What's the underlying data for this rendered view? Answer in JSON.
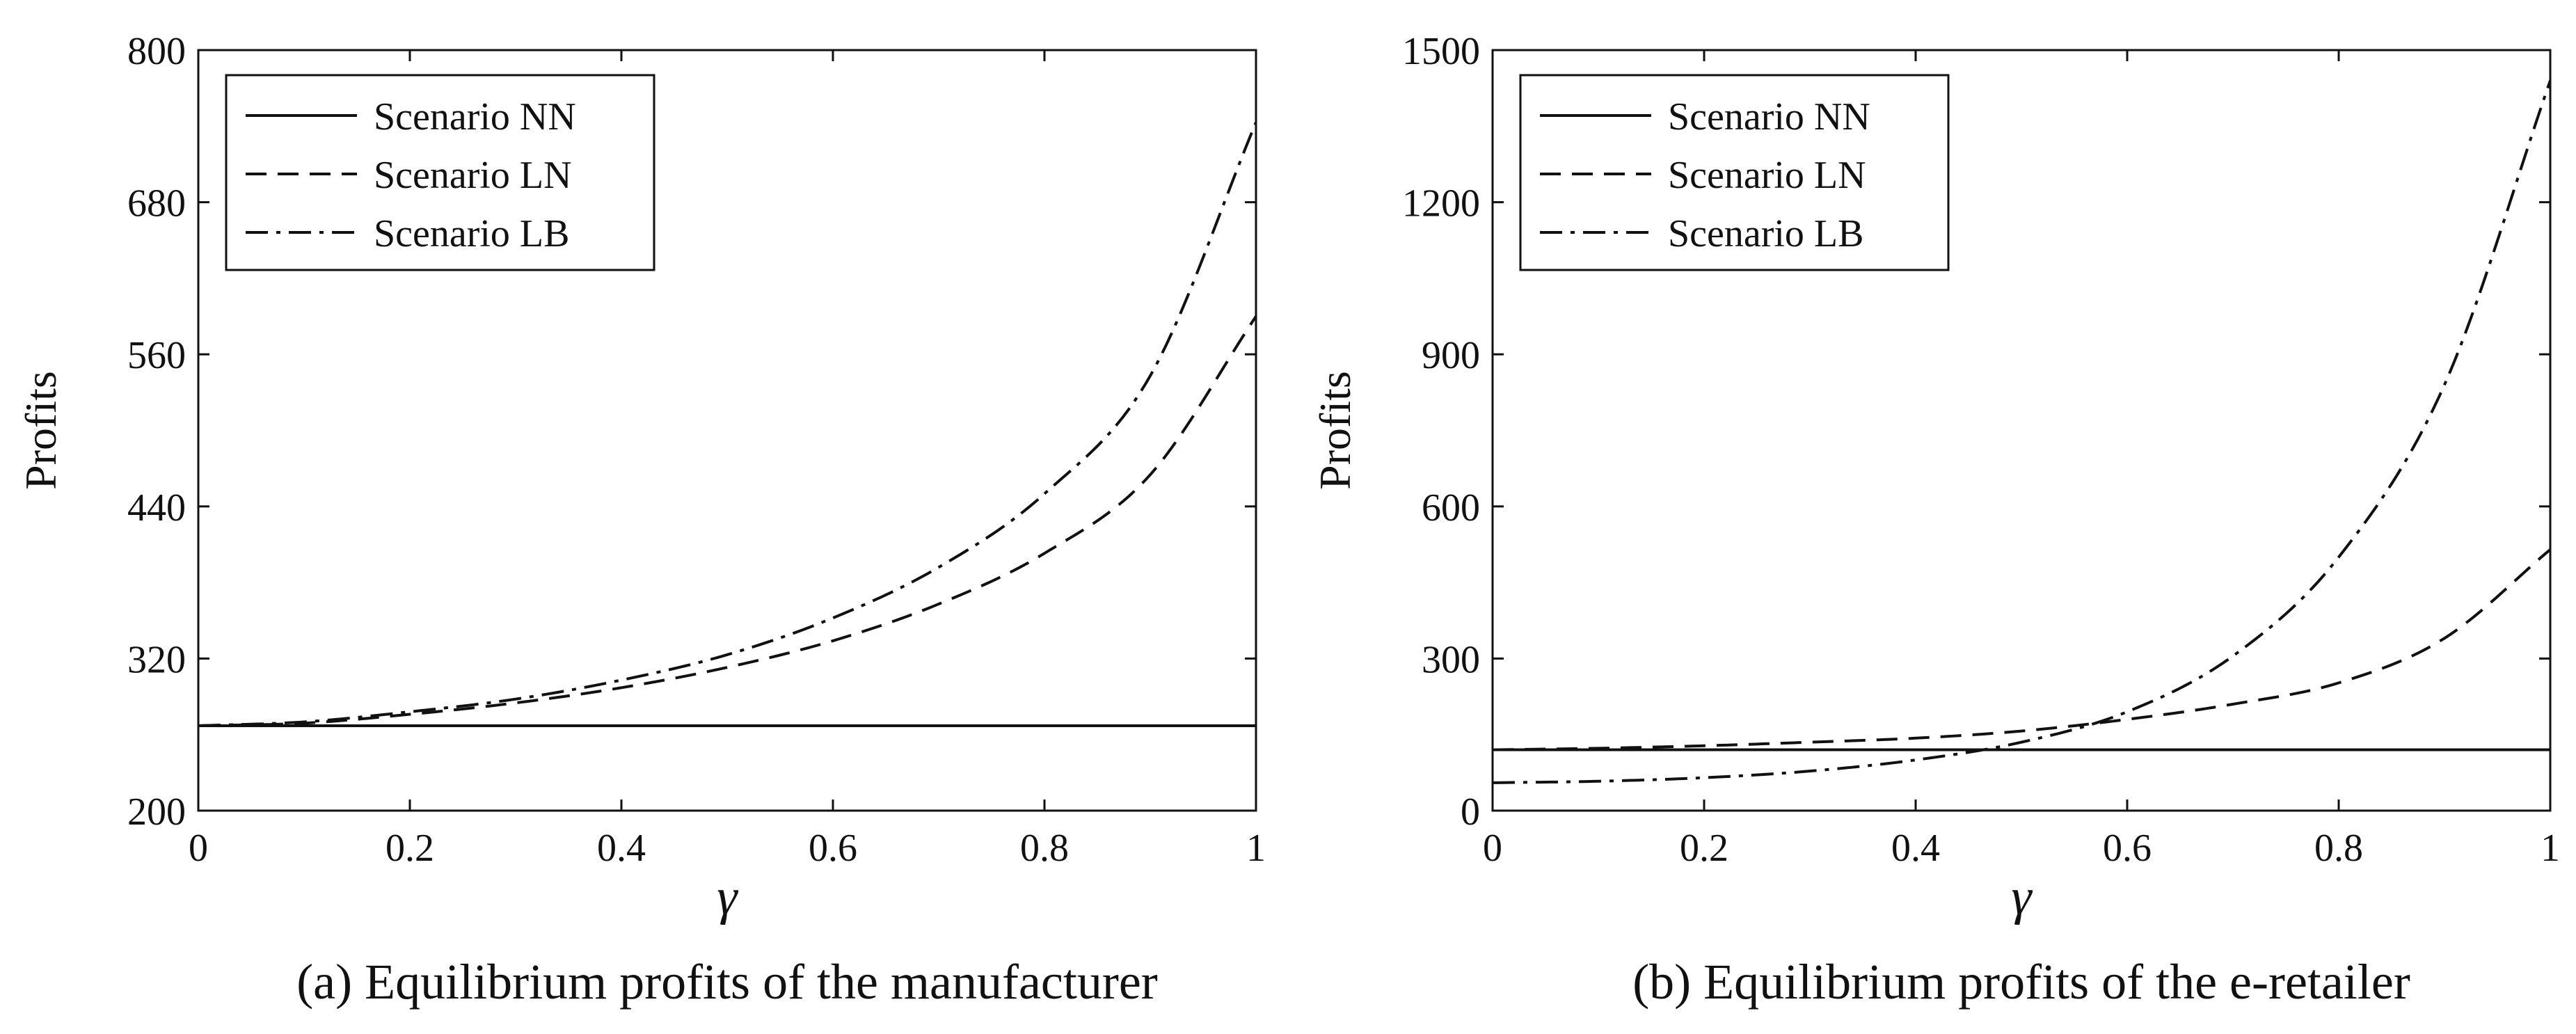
{
  "chart_data": [
    {
      "type": "line",
      "caption": "(a) Equilibrium profits of the manufacturer",
      "xlabel": "γ",
      "ylabel": "Profits",
      "xlim": [
        0,
        1
      ],
      "ylim": [
        200,
        800
      ],
      "xticks": [
        "0",
        "0.2",
        "0.4",
        "0.6",
        "0.8",
        "1"
      ],
      "yticks": [
        "200",
        "320",
        "440",
        "560",
        "680",
        "800"
      ],
      "legend_position": "top-left",
      "x": [
        0,
        0.1,
        0.2,
        0.3,
        0.4,
        0.5,
        0.6,
        0.7,
        0.8,
        0.9,
        1.0
      ],
      "series": [
        {
          "name": "Scenario NN",
          "line_style": "solid",
          "values": [
            267,
            267,
            267,
            267,
            267,
            267,
            267,
            267,
            267,
            267,
            267
          ]
        },
        {
          "name": "Scenario LN",
          "line_style": "dashed",
          "values": [
            267,
            269,
            276,
            285,
            297,
            313,
            334,
            363,
            403,
            465,
            590
          ]
        },
        {
          "name": "Scenario LB",
          "line_style": "dashdot",
          "values": [
            267,
            270,
            278,
            288,
            303,
            323,
            352,
            392,
            450,
            543,
            743
          ]
        }
      ]
    },
    {
      "type": "line",
      "caption": "(b) Equilibrium profits of the e-retailer",
      "xlabel": "γ",
      "ylabel": "Profits",
      "xlim": [
        0,
        1
      ],
      "ylim": [
        0,
        1500
      ],
      "xticks": [
        "0",
        "0.2",
        "0.4",
        "0.6",
        "0.8",
        "1"
      ],
      "yticks": [
        "0",
        "300",
        "600",
        "900",
        "1200",
        "1500"
      ],
      "legend_position": "top-left",
      "x": [
        0,
        0.1,
        0.2,
        0.3,
        0.4,
        0.5,
        0.6,
        0.7,
        0.8,
        0.9,
        1.0
      ],
      "series": [
        {
          "name": "Scenario NN",
          "line_style": "solid",
          "values": [
            120,
            120,
            120,
            120,
            120,
            120,
            120,
            120,
            120,
            120,
            120
          ]
        },
        {
          "name": "Scenario LN",
          "line_style": "dashed",
          "values": [
            120,
            123,
            128,
            135,
            143,
            157,
            180,
            210,
            252,
            340,
            515
          ]
        },
        {
          "name": "Scenario LB",
          "line_style": "dashdot",
          "values": [
            55,
            58,
            65,
            78,
            100,
            135,
            195,
            305,
            500,
            840,
            1440
          ]
        }
      ]
    }
  ]
}
